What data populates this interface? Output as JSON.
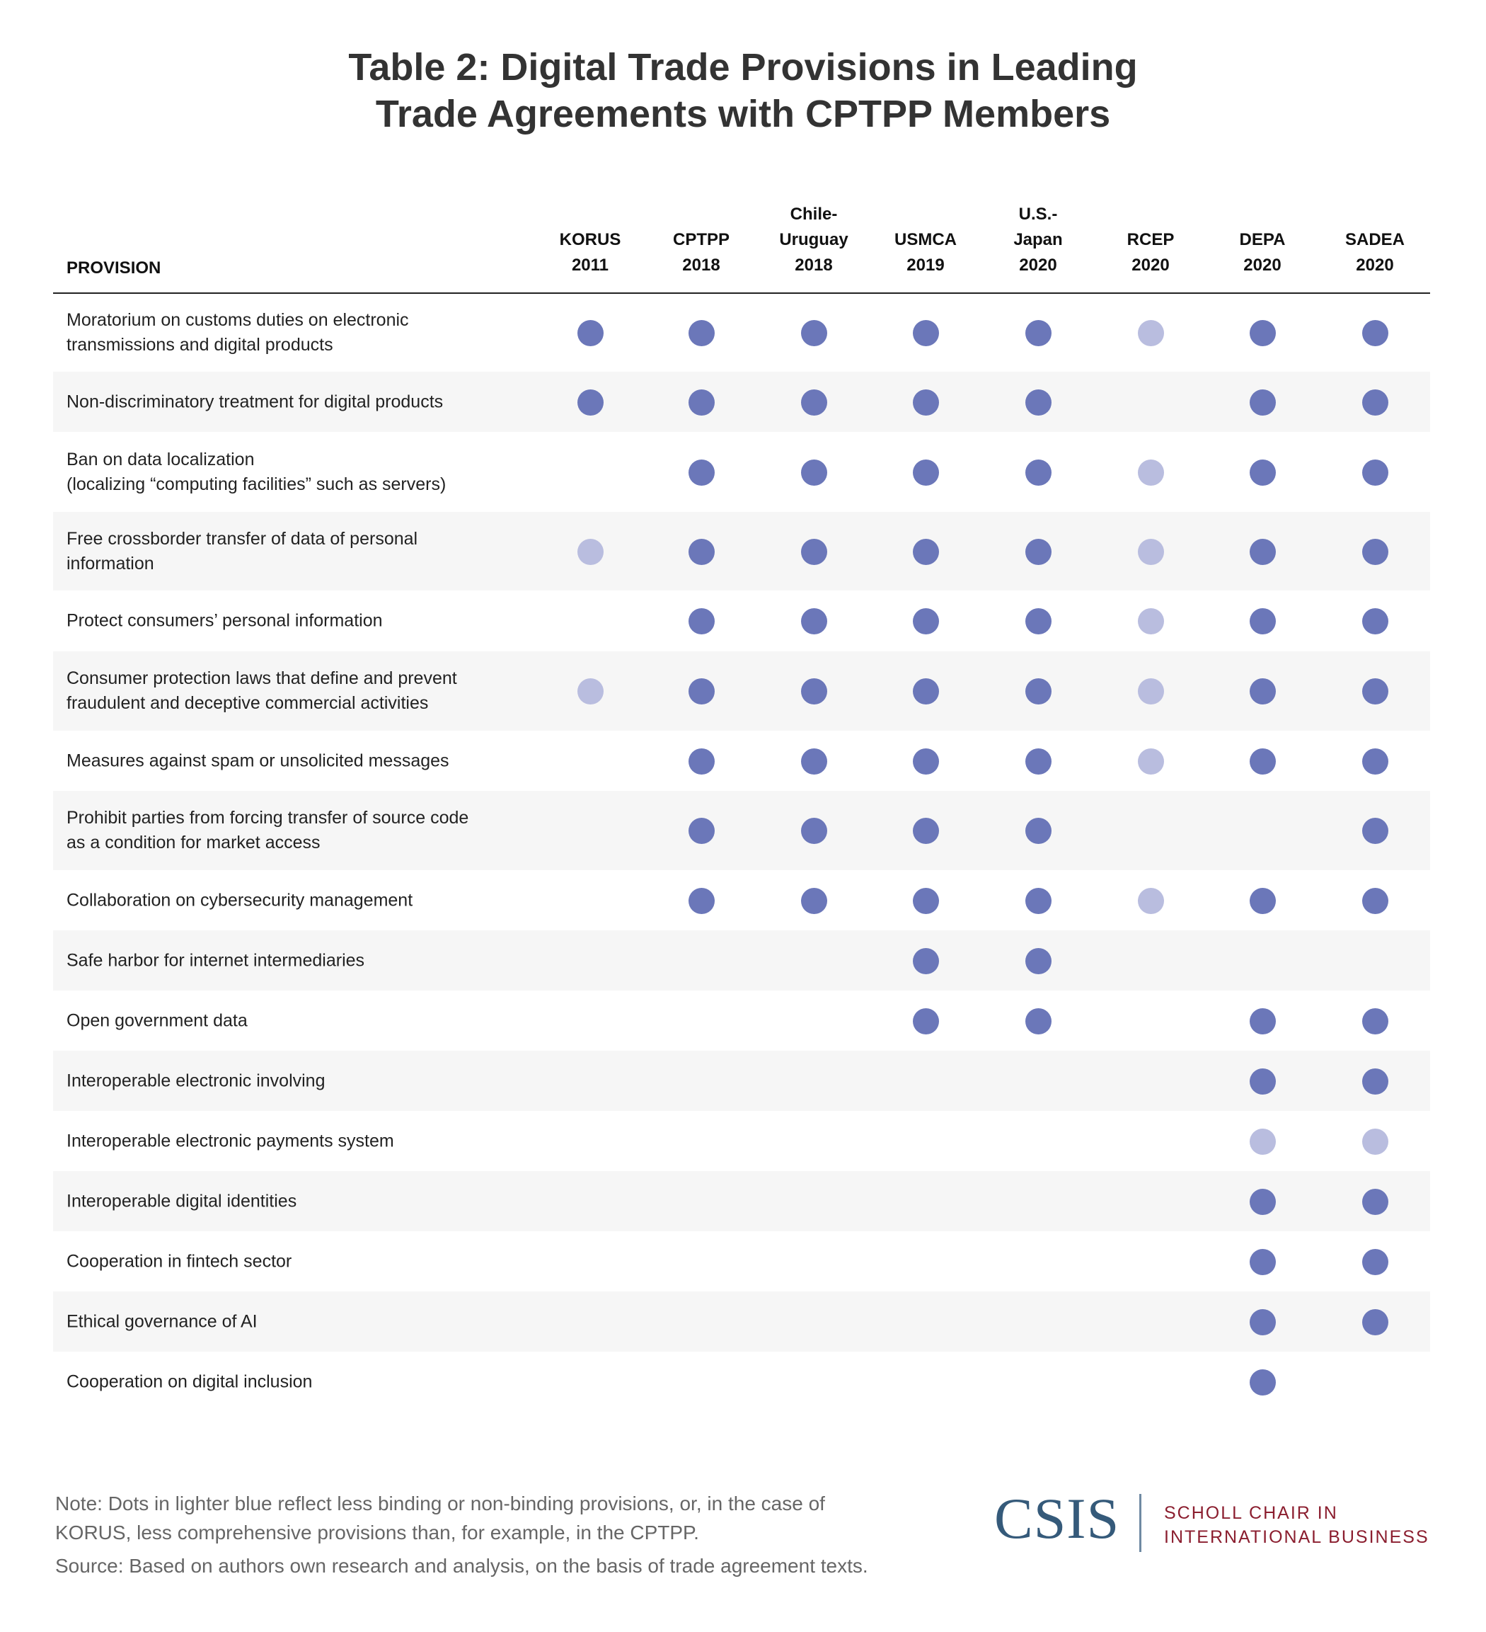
{
  "title": "Table 2: Digital Trade Provisions in Leading\nTrade Agreements with CPTPP Members",
  "colors": {
    "full": "#6b77b9",
    "light": "#b9bddf",
    "stripe": "#f6f6f6"
  },
  "columns": {
    "provision": "PROVISION",
    "agreements": [
      "KORUS\n2011",
      "CPTPP\n2018",
      "Chile-\nUruguay\n2018",
      "USMCA\n2019",
      "U.S.-\nJapan\n2020",
      "RCEP\n2020",
      "DEPA\n2020",
      "SADEA\n2020"
    ]
  },
  "rows": [
    {
      "provision": "Moratorium on customs duties on electronic\ntransmissions and digital products",
      "marks": [
        "full",
        "full",
        "full",
        "full",
        "full",
        "light",
        "full",
        "full"
      ]
    },
    {
      "provision": "Non-discriminatory treatment for digital products",
      "marks": [
        "full",
        "full",
        "full",
        "full",
        "full",
        "",
        "full",
        "full"
      ]
    },
    {
      "provision": "Ban on data localization\n(localizing “computing facilities” such as servers)",
      "marks": [
        "",
        "full",
        "full",
        "full",
        "full",
        "light",
        "full",
        "full"
      ]
    },
    {
      "provision": "Free crossborder transfer of data of personal\ninformation",
      "marks": [
        "light",
        "full",
        "full",
        "full",
        "full",
        "light",
        "full",
        "full"
      ]
    },
    {
      "provision": "Protect consumers’ personal information",
      "marks": [
        "",
        "full",
        "full",
        "full",
        "full",
        "light",
        "full",
        "full"
      ]
    },
    {
      "provision": "Consumer protection laws that define and prevent\nfraudulent and deceptive commercial activities",
      "marks": [
        "light",
        "full",
        "full",
        "full",
        "full",
        "light",
        "full",
        "full"
      ]
    },
    {
      "provision": "Measures against spam or unsolicited messages",
      "marks": [
        "",
        "full",
        "full",
        "full",
        "full",
        "light",
        "full",
        "full"
      ]
    },
    {
      "provision": "Prohibit parties from forcing transfer of source code\nas a condition for market access",
      "marks": [
        "",
        "full",
        "full",
        "full",
        "full",
        "",
        "",
        "full"
      ]
    },
    {
      "provision": "Collaboration on cybersecurity management",
      "marks": [
        "",
        "full",
        "full",
        "full",
        "full",
        "light",
        "full",
        "full"
      ]
    },
    {
      "provision": "Safe harbor for internet intermediaries",
      "marks": [
        "",
        "",
        "",
        "full",
        "full",
        "",
        "",
        ""
      ]
    },
    {
      "provision": "Open government data",
      "marks": [
        "",
        "",
        "",
        "full",
        "full",
        "",
        "full",
        "full"
      ]
    },
    {
      "provision": "Interoperable electronic involving",
      "marks": [
        "",
        "",
        "",
        "",
        "",
        "",
        "full",
        "full"
      ]
    },
    {
      "provision": "Interoperable electronic payments system",
      "marks": [
        "",
        "",
        "",
        "",
        "",
        "",
        "light",
        "light"
      ]
    },
    {
      "provision": "Interoperable digital identities",
      "marks": [
        "",
        "",
        "",
        "",
        "",
        "",
        "full",
        "full"
      ]
    },
    {
      "provision": "Cooperation in fintech sector",
      "marks": [
        "",
        "",
        "",
        "",
        "",
        "",
        "full",
        "full"
      ]
    },
    {
      "provision": "Ethical governance of AI",
      "marks": [
        "",
        "",
        "",
        "",
        "",
        "",
        "full",
        "full"
      ]
    },
    {
      "provision": "Cooperation on digital inclusion",
      "marks": [
        "",
        "",
        "",
        "",
        "",
        "",
        "full",
        ""
      ]
    }
  ],
  "note": "Note: Dots in lighter blue reflect less binding or non-binding provisions, or, in the case of\nKORUS, less comprehensive provisions than, for example, in the CPTPP.",
  "source": "Source: Based on authors own research and analysis, on the basis of trade agreement texts.",
  "logo": {
    "name": "CSIS",
    "subtitle": "SCHOLL CHAIR IN\nINTERNATIONAL BUSINESS"
  }
}
